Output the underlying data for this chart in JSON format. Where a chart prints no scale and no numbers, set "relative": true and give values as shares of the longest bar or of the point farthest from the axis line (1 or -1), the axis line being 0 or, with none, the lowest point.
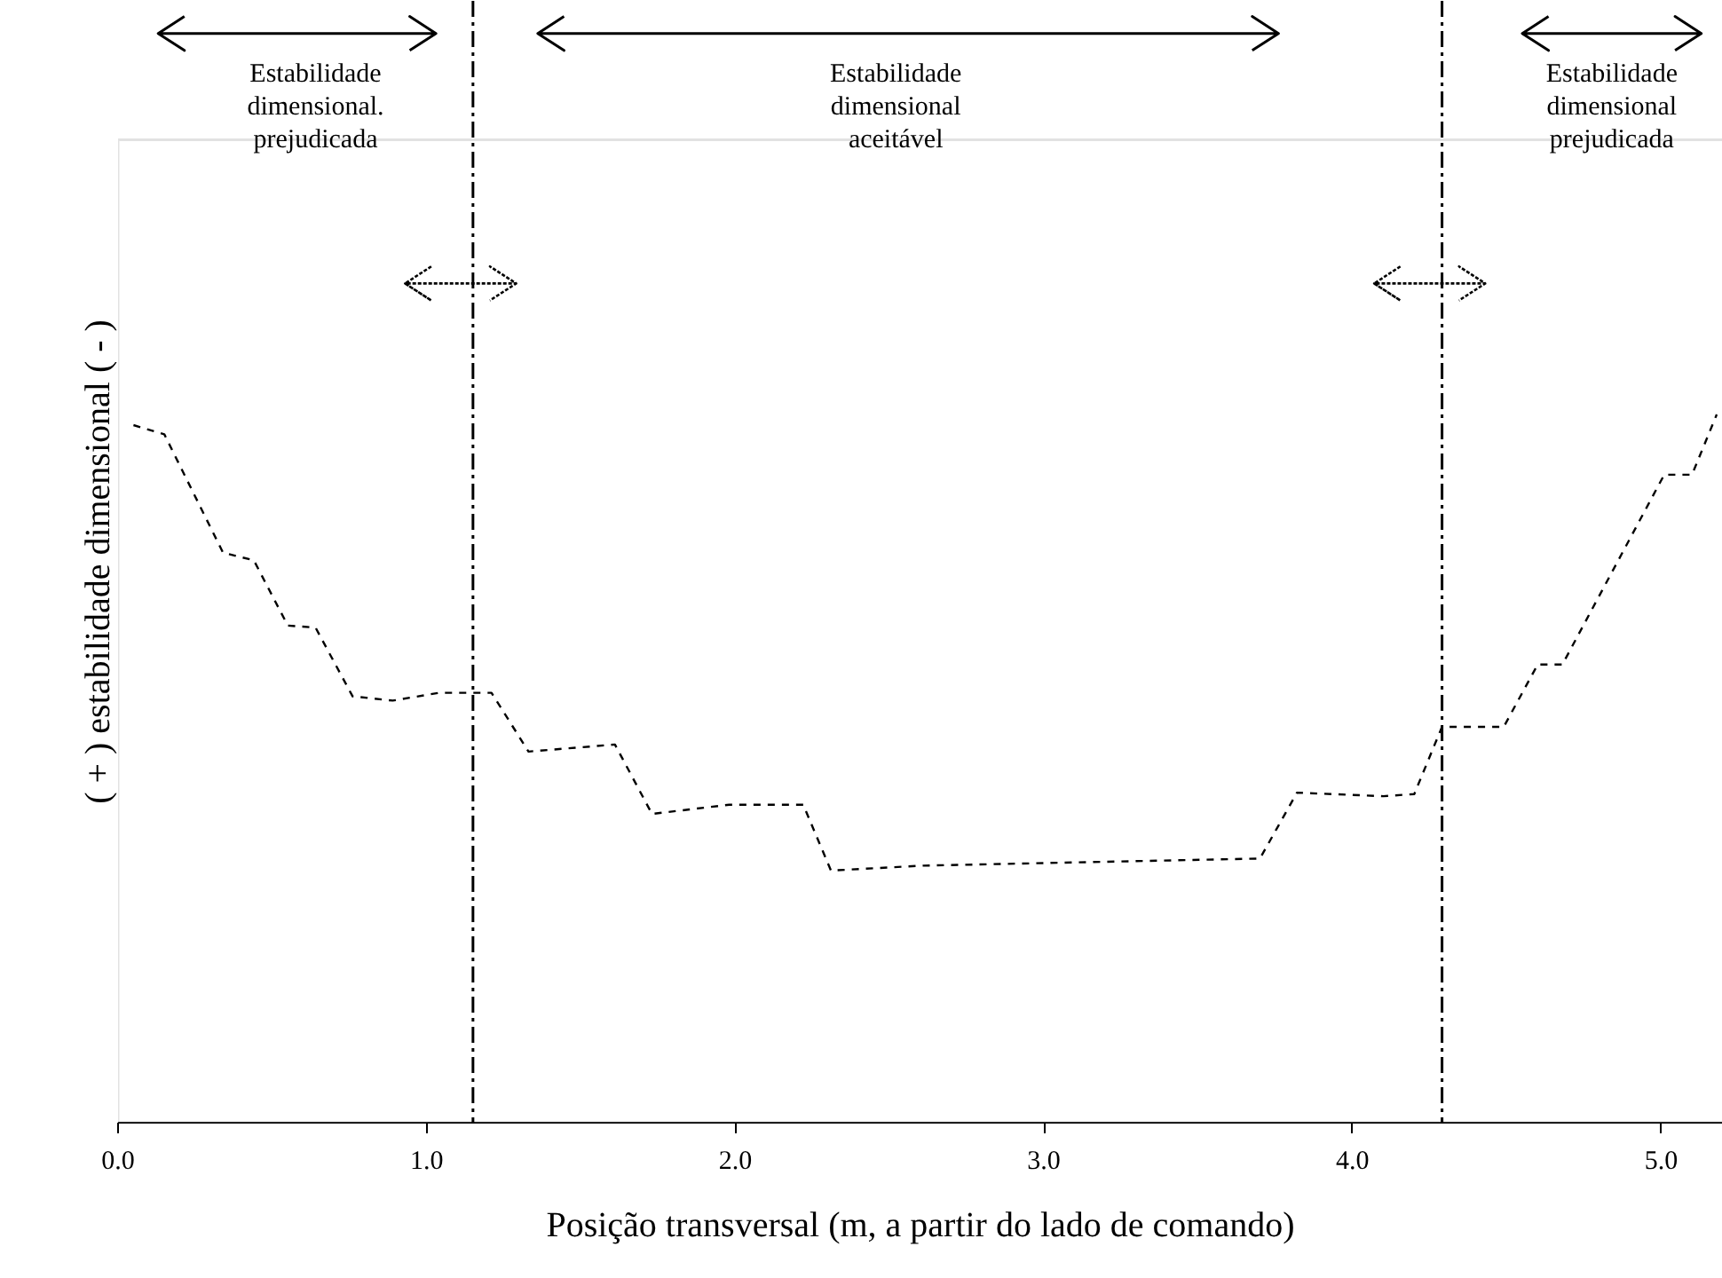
{
  "chart_data": {
    "type": "line",
    "relative": true,
    "xlabel": "Posição transversal (m, a partir do lado de comando)",
    "ylabel": "( + ) estabilidade dimensional ( - )",
    "xlim": [
      0,
      5.2
    ],
    "xticks": [
      {
        "value": 0,
        "label": "0.0"
      },
      {
        "value": 1,
        "label": "1.0"
      },
      {
        "value": 2,
        "label": "2.0"
      },
      {
        "value": 3,
        "label": "3.0"
      },
      {
        "value": 4,
        "label": "4.0"
      },
      {
        "value": 5,
        "label": "5.0"
      }
    ],
    "series": [
      {
        "color": "#000000",
        "line_style": "dashed",
        "x": [
          0.05,
          0.15,
          0.34,
          0.44,
          0.55,
          0.64,
          0.76,
          0.89,
          1.04,
          1.21,
          1.33,
          1.61,
          1.73,
          1.98,
          2.22,
          2.31,
          2.61,
          3.7,
          3.82,
          4.1,
          4.2,
          4.29,
          4.49,
          4.6,
          4.68,
          5.01,
          5.1,
          5.18
        ],
        "values": [
          0.985,
          0.972,
          0.805,
          0.794,
          0.702,
          0.699,
          0.602,
          0.596,
          0.607,
          0.607,
          0.524,
          0.534,
          0.436,
          0.449,
          0.449,
          0.356,
          0.363,
          0.373,
          0.466,
          0.461,
          0.464,
          0.559,
          0.559,
          0.647,
          0.647,
          0.915,
          0.915,
          1.0
        ]
      }
    ],
    "ref_lines": [
      {
        "axis": "x",
        "value": 1.15,
        "color": "#000000",
        "line_style": "dashdot"
      },
      {
        "axis": "x",
        "value": 4.29,
        "color": "#000000",
        "line_style": "dashdot"
      }
    ],
    "annotations": [
      "Estabilidade\ndimensional.\nprejudicada",
      "Estabilidade\ndimensional\naceitável",
      "Estabilidade\ndimensional\nprejudicada"
    ],
    "grid": false
  }
}
